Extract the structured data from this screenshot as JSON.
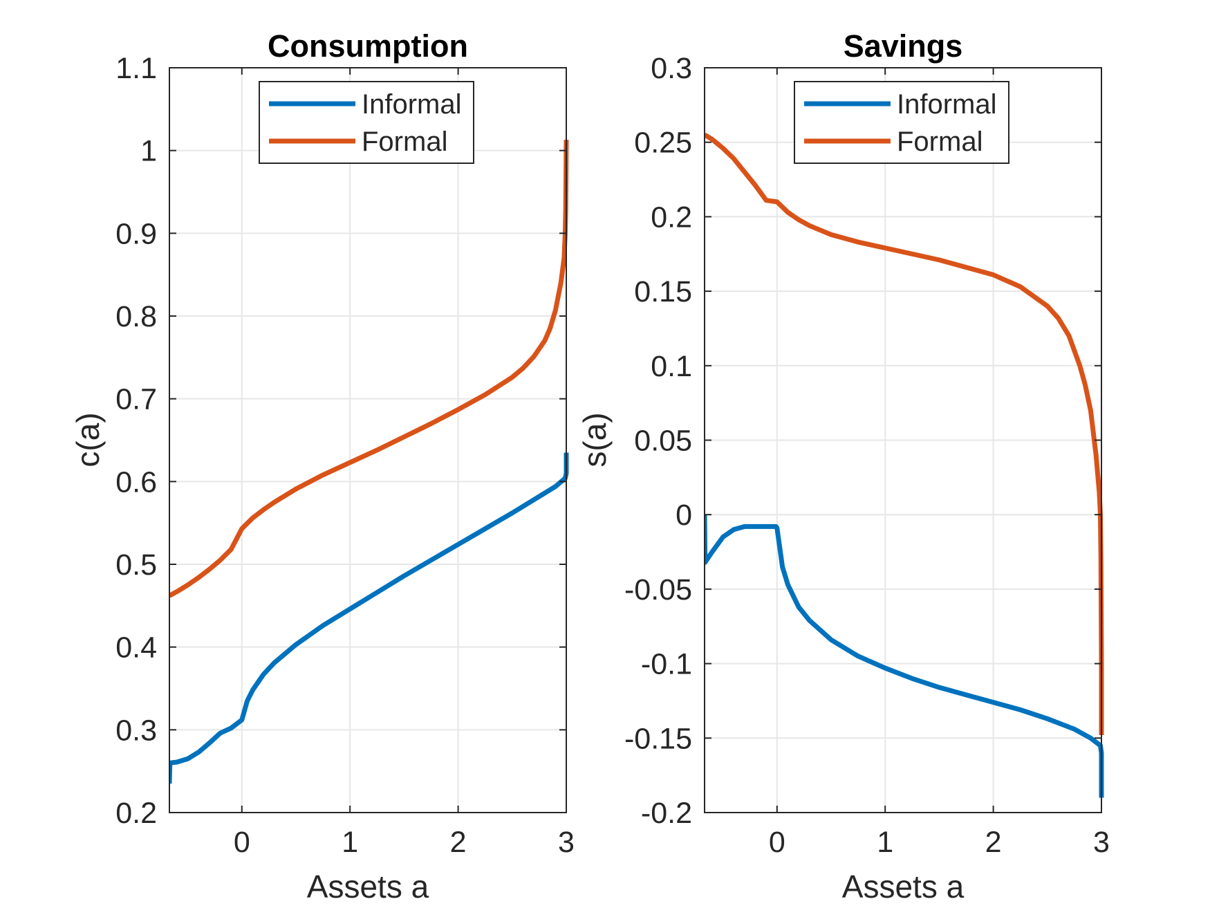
{
  "chart_data": [
    {
      "type": "line",
      "title": "Consumption",
      "xlabel": "Assets a",
      "ylabel": "c(a)",
      "xlim": [
        -0.67,
        3.0
      ],
      "ylim": [
        0.2,
        1.1
      ],
      "xticks": [
        0,
        1,
        2,
        3
      ],
      "xtick_labels": [
        "0",
        "1",
        "2",
        "3"
      ],
      "yticks": [
        0.2,
        0.3,
        0.4,
        0.5,
        0.6,
        0.7,
        0.8,
        0.9,
        1.0,
        1.1
      ],
      "ytick_labels": [
        "0.2",
        "0.3",
        "0.4",
        "0.5",
        "0.6",
        "0.7",
        "0.8",
        "0.9",
        "1",
        "1.1"
      ],
      "grid": true,
      "legend_position": "top-right",
      "series": [
        {
          "name": "Informal",
          "color": "#0072BD",
          "x": [
            -0.67,
            -0.665,
            -0.6,
            -0.5,
            -0.4,
            -0.3,
            -0.2,
            -0.1,
            0.0,
            0.05,
            0.1,
            0.2,
            0.3,
            0.5,
            0.75,
            1.0,
            1.25,
            1.5,
            1.75,
            2.0,
            2.25,
            2.5,
            2.75,
            2.9,
            2.99,
            3.0,
            3.0
          ],
          "y": [
            0.235,
            0.26,
            0.261,
            0.265,
            0.273,
            0.284,
            0.296,
            0.302,
            0.312,
            0.335,
            0.348,
            0.367,
            0.381,
            0.403,
            0.426,
            0.446,
            0.466,
            0.486,
            0.505,
            0.524,
            0.543,
            0.562,
            0.582,
            0.594,
            0.604,
            0.61,
            0.635
          ]
        },
        {
          "name": "Formal",
          "color": "#D95319",
          "x": [
            -0.67,
            -0.6,
            -0.5,
            -0.4,
            -0.3,
            -0.2,
            -0.1,
            0.0,
            0.1,
            0.2,
            0.3,
            0.5,
            0.75,
            1.0,
            1.25,
            1.5,
            1.75,
            2.0,
            2.25,
            2.5,
            2.6,
            2.7,
            2.8,
            2.85,
            2.9,
            2.95,
            2.98,
            2.99,
            2.995,
            3.0
          ],
          "y": [
            0.462,
            0.467,
            0.475,
            0.484,
            0.494,
            0.505,
            0.518,
            0.543,
            0.556,
            0.566,
            0.575,
            0.591,
            0.608,
            0.623,
            0.638,
            0.654,
            0.67,
            0.687,
            0.705,
            0.726,
            0.737,
            0.751,
            0.77,
            0.785,
            0.807,
            0.84,
            0.87,
            0.9,
            0.93,
            1.013
          ]
        }
      ]
    },
    {
      "type": "line",
      "title": "Savings",
      "xlabel": "Assets a",
      "ylabel": "s(a)",
      "xlim": [
        -0.67,
        3.0
      ],
      "ylim": [
        -0.2,
        0.3
      ],
      "xticks": [
        0,
        1,
        2,
        3
      ],
      "xtick_labels": [
        "0",
        "1",
        "2",
        "3"
      ],
      "yticks": [
        -0.2,
        -0.15,
        -0.1,
        -0.05,
        0,
        0.05,
        0.1,
        0.15,
        0.2,
        0.25,
        0.3
      ],
      "ytick_labels": [
        "-0.2",
        "-0.15",
        "-0.1",
        "-0.05",
        "0",
        "0.05",
        "0.1",
        "0.15",
        "0.2",
        "0.25",
        "0.3"
      ],
      "grid": true,
      "legend_position": "top-right",
      "series": [
        {
          "name": "Informal",
          "color": "#0072BD",
          "x": [
            -0.67,
            -0.665,
            -0.6,
            -0.5,
            -0.4,
            -0.3,
            -0.2,
            -0.1,
            -0.01,
            0.0,
            0.05,
            0.1,
            0.2,
            0.3,
            0.5,
            0.75,
            1.0,
            1.25,
            1.5,
            1.75,
            2.0,
            2.25,
            2.5,
            2.75,
            2.9,
            2.99,
            3.0,
            3.0
          ],
          "y": [
            0.0,
            -0.032,
            -0.025,
            -0.015,
            -0.01,
            -0.008,
            -0.008,
            -0.008,
            -0.008,
            -0.009,
            -0.035,
            -0.047,
            -0.062,
            -0.071,
            -0.084,
            -0.095,
            -0.103,
            -0.11,
            -0.116,
            -0.121,
            -0.126,
            -0.131,
            -0.137,
            -0.144,
            -0.15,
            -0.155,
            -0.16,
            -0.19
          ]
        },
        {
          "name": "Formal",
          "color": "#D95319",
          "x": [
            -0.67,
            -0.6,
            -0.5,
            -0.4,
            -0.3,
            -0.2,
            -0.1,
            0.0,
            0.1,
            0.2,
            0.3,
            0.5,
            0.75,
            1.0,
            1.25,
            1.5,
            1.75,
            2.0,
            2.25,
            2.5,
            2.6,
            2.7,
            2.8,
            2.85,
            2.9,
            2.95,
            2.98,
            2.99,
            2.995,
            3.0,
            3.0
          ],
          "y": [
            0.255,
            0.252,
            0.246,
            0.239,
            0.23,
            0.221,
            0.211,
            0.21,
            0.203,
            0.198,
            0.194,
            0.188,
            0.183,
            0.179,
            0.175,
            0.171,
            0.166,
            0.161,
            0.153,
            0.14,
            0.132,
            0.12,
            0.1,
            0.087,
            0.07,
            0.04,
            0.015,
            0.0,
            -0.03,
            -0.1,
            -0.148
          ]
        }
      ]
    }
  ]
}
